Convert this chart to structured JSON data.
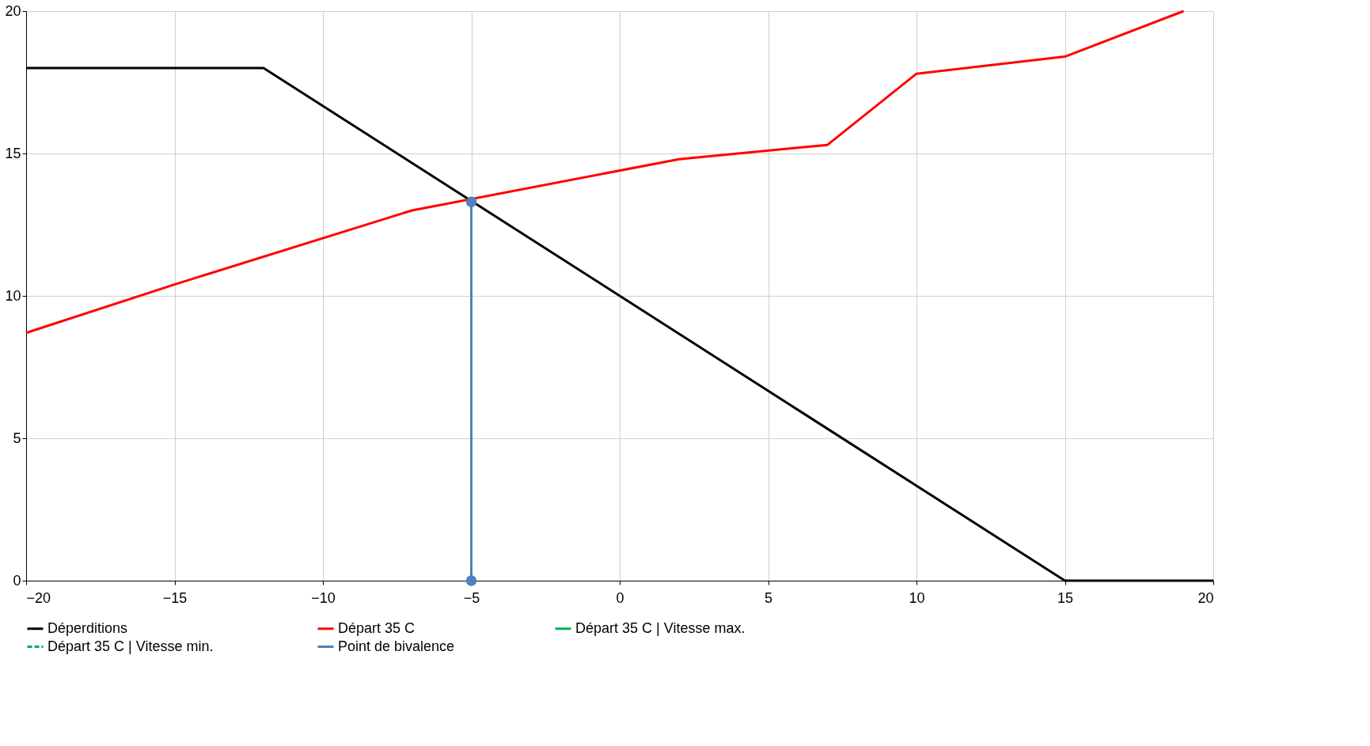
{
  "chart_data": {
    "type": "line",
    "xlim": [
      -20,
      20
    ],
    "xticks": [
      -20,
      -15,
      -10,
      -5,
      0,
      5,
      10,
      15,
      20
    ],
    "ylim": [
      0,
      20
    ],
    "yticks": [
      0,
      5,
      10,
      15,
      20
    ],
    "grid": true,
    "legend": "bottom",
    "series": [
      {
        "name": "Déperditions",
        "color": "#000000",
        "x": [
          -20,
          -12,
          15,
          20
        ],
        "values": [
          18,
          18,
          0,
          0
        ]
      },
      {
        "name": "Départ 35  C",
        "color": "#ff0000",
        "x": [
          -20,
          -15,
          -7,
          2,
          7,
          10,
          15,
          19
        ],
        "values": [
          8.7,
          10.4,
          13,
          14.8,
          15.3,
          17.8,
          18.4,
          20
        ]
      },
      {
        "name": "Départ 35  C | Vitesse max.",
        "color": "#00b050"
      },
      {
        "name": "Départ 35  C | Vitesse min.",
        "color": "#00b050",
        "line_style": "dashed"
      },
      {
        "name": "Point de bivalence",
        "color": "#4f81bd",
        "marker": "circle",
        "x": [
          -5,
          -5
        ],
        "values": [
          13.3,
          0
        ]
      }
    ]
  }
}
